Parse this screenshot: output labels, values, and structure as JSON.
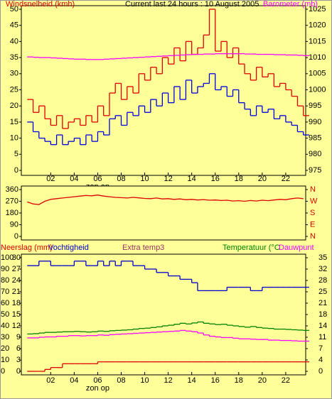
{
  "chart_data": [
    {
      "type": "line",
      "title": "Current last 24 hours : 10 August 2005",
      "ylabel": "Windsnelheid (kmh)",
      "y2label": "Barometer (mb)",
      "step": true,
      "x": [
        0,
        0.5,
        1,
        1.5,
        2,
        2.5,
        3,
        3.5,
        4,
        4.5,
        5,
        5.5,
        6,
        6.5,
        7,
        7.5,
        8,
        8.5,
        9,
        9.5,
        10,
        10.5,
        11,
        11.5,
        12,
        12.5,
        13,
        13.5,
        14,
        14.5,
        15,
        15.5,
        16,
        16.5,
        17,
        17.5,
        18,
        18.5,
        19,
        19.5,
        20,
        20.5,
        21,
        21.5,
        22,
        22.5,
        23,
        23.5
      ],
      "xlim": [
        -0.5,
        23.7
      ],
      "xticks": [
        {
          "value": 2,
          "label": "02"
        },
        {
          "value": 4,
          "label": "04"
        },
        {
          "value": 6,
          "label": "06"
        },
        {
          "value": 8,
          "label": "08"
        },
        10,
        12,
        14,
        16,
        18,
        20,
        22
      ],
      "annotation": {
        "x": 6,
        "text": "zon op"
      },
      "ylim": [
        0,
        50
      ],
      "yticks": [
        0,
        5,
        10,
        15,
        20,
        25,
        30,
        35,
        40,
        45,
        50
      ],
      "y2lim": [
        975,
        1025
      ],
      "y2ticks": [
        975,
        980,
        985,
        990,
        995,
        1000,
        1005,
        1010,
        1015,
        1020,
        1025
      ],
      "series": [
        {
          "color": "#e00000",
          "values": [
            22,
            18,
            20,
            16,
            14,
            17,
            13,
            15,
            16,
            14,
            17,
            15,
            20,
            17,
            24,
            27,
            22,
            26,
            24,
            30,
            28,
            32,
            30,
            35,
            33,
            38,
            34,
            40,
            36,
            38,
            42,
            50,
            37,
            40,
            35,
            38,
            33,
            30,
            28,
            32,
            29,
            30,
            26,
            27,
            25,
            23,
            20,
            17
          ]
        },
        {
          "color": "#0000dd",
          "values": [
            15,
            12,
            10,
            9,
            8,
            11,
            8,
            9,
            10,
            8,
            11,
            9,
            12,
            11,
            16,
            17,
            14,
            18,
            17,
            20,
            18,
            22,
            20,
            24,
            21,
            26,
            22,
            28,
            24,
            26,
            27,
            30,
            25,
            26,
            23,
            25,
            21,
            19,
            17,
            20,
            18,
            19,
            16,
            17,
            15,
            14,
            12,
            11
          ]
        },
        {
          "color": "#ff00ff",
          "axis": "y2",
          "values": [
            1010.2,
            1010.1,
            1010,
            1010,
            1009.9,
            1009.8,
            1009.7,
            1009.6,
            1009.5,
            1009.5,
            1009.4,
            1009.4,
            1009.4,
            1009.5,
            1009.6,
            1009.7,
            1009.8,
            1009.9,
            1010,
            1010.1,
            1010.2,
            1010.3,
            1010.4,
            1010.5,
            1010.6,
            1010.7,
            1010.8,
            1010.9,
            1011,
            1011,
            1011.1,
            1011.1,
            1011.2,
            1011.2,
            1011.2,
            1011.2,
            1011.2,
            1011.1,
            1011.1,
            1011,
            1011,
            1011,
            1010.9,
            1010.9,
            1010.8,
            1010.8,
            1010.7,
            1010.6
          ]
        }
      ]
    },
    {
      "type": "line",
      "x": [
        0,
        0.5,
        1,
        1.5,
        2,
        2.5,
        3,
        3.5,
        4,
        4.5,
        5,
        5.5,
        6,
        6.5,
        7,
        7.5,
        8,
        8.5,
        9,
        9.5,
        10,
        10.5,
        11,
        11.5,
        12,
        12.5,
        13,
        13.5,
        14,
        14.5,
        15,
        15.5,
        16,
        16.5,
        17,
        17.5,
        18,
        18.5,
        19,
        19.5,
        20,
        20.5,
        21,
        21.5,
        22,
        22.5,
        23,
        23.5
      ],
      "xlim": [
        -0.5,
        23.7
      ],
      "ylim": [
        0,
        360
      ],
      "yticks": [
        0,
        90,
        180,
        270,
        360
      ],
      "y2ticks": [
        {
          "value": 360,
          "label": "N"
        },
        {
          "value": 270,
          "label": "W"
        },
        {
          "value": 180,
          "label": "S"
        },
        {
          "value": 90,
          "label": "E"
        },
        {
          "value": 0,
          "label": "N"
        }
      ],
      "series": [
        {
          "color": "#dd0000",
          "values": [
            265,
            250,
            245,
            270,
            285,
            290,
            295,
            300,
            305,
            310,
            315,
            312,
            318,
            310,
            305,
            300,
            298,
            295,
            300,
            296,
            292,
            290,
            295,
            288,
            290,
            285,
            288,
            282,
            285,
            280,
            283,
            278,
            280,
            276,
            278,
            272,
            275,
            270,
            276,
            272,
            278,
            275,
            280,
            285,
            282,
            290,
            295,
            290
          ]
        }
      ]
    },
    {
      "type": "line",
      "note": "Extra temp3",
      "step": true,
      "x": [
        0,
        0.5,
        1,
        1.5,
        2,
        2.5,
        3,
        3.5,
        4,
        4.5,
        5,
        5.5,
        6,
        6.5,
        7,
        7.5,
        8,
        8.5,
        9,
        9.5,
        10,
        10.5,
        11,
        11.5,
        12,
        12.5,
        13,
        13.5,
        14,
        14.5,
        15,
        15.5,
        16,
        16.5,
        17,
        17.5,
        18,
        18.5,
        19,
        19.5,
        20,
        20.5,
        21,
        21.5,
        22,
        22.5,
        23,
        23.5
      ],
      "xlim": [
        -0.5,
        23.7
      ],
      "xticks": [
        {
          "value": 2,
          "label": "02"
        },
        {
          "value": 4,
          "label": "04"
        },
        {
          "value": 6,
          "label": "06"
        },
        {
          "value": 8,
          "label": "08"
        },
        10,
        12,
        14,
        16,
        18,
        20,
        22
      ],
      "annotation": {
        "x": 6,
        "text": "zon op"
      },
      "ylim": [
        0,
        100
      ],
      "yticks": [
        0,
        10,
        20,
        30,
        40,
        50,
        60,
        70,
        80,
        90,
        100
      ],
      "y3lim": [
        0,
        30
      ],
      "y3ticks": [
        0,
        3,
        6,
        9,
        12,
        15,
        18,
        21,
        24,
        27,
        30
      ],
      "y2lim": [
        0,
        35
      ],
      "y2ticks": [
        0,
        {
          "value": 3.5,
          "label": "4"
        },
        7,
        {
          "value": 10.5,
          "label": "11"
        },
        14,
        {
          "value": 17.5,
          "label": "18"
        },
        21,
        {
          "value": 24.5,
          "label": "25"
        },
        28,
        {
          "value": 31.5,
          "label": "32"
        },
        35
      ],
      "series": [
        {
          "name": "Neerslag (mm)",
          "color": "#dd0000",
          "axis": "y3",
          "values": [
            0,
            0,
            0,
            0.5,
            1,
            1,
            2,
            2,
            2,
            2,
            2,
            2,
            2.5,
            2.5,
            2.5,
            2.5,
            2.5,
            2.5,
            2.5,
            2.5,
            2.5,
            2.5,
            2.5,
            2.5,
            2.5,
            2.5,
            2.5,
            2.5,
            2.5,
            2.5,
            2.5,
            2.5,
            2.5,
            2.5,
            2.5,
            2.5,
            2.5,
            2.5,
            2.5,
            2.5,
            2.5,
            2.5,
            2.5,
            2.5,
            2.5,
            2.5,
            2.5,
            2.5
          ]
        },
        {
          "name": "Vochtigheid",
          "color": "#0000cc",
          "values": [
            93,
            93,
            97,
            97,
            93,
            93,
            93,
            93,
            97,
            97,
            93,
            93,
            97,
            93,
            97,
            93,
            97,
            97,
            93,
            93,
            90,
            90,
            87,
            87,
            84,
            84,
            81,
            81,
            78,
            71,
            71,
            71,
            71,
            71,
            74,
            74,
            74,
            74,
            71,
            71,
            74,
            74,
            74,
            74,
            74,
            74,
            74,
            74
          ]
        },
        {
          "name": "Temperatuur (°C",
          "color": "#008000",
          "axis": "y2",
          "values": [
            11.5,
            11.6,
            11.8,
            12,
            12,
            12.1,
            12.2,
            12.2,
            12.3,
            12.2,
            12.1,
            12.2,
            12.4,
            12.3,
            12.5,
            12.6,
            12.7,
            12.8,
            13,
            13.2,
            13.3,
            13.5,
            13.7,
            14,
            14.2,
            14.5,
            14.8,
            14.6,
            14.9,
            15.2,
            14.8,
            14.6,
            14.4,
            14.5,
            14.2,
            14,
            13.8,
            13.6,
            13.8,
            13.5,
            13.3,
            13.2,
            13,
            13,
            12.9,
            12.8,
            12.7,
            12.6
          ]
        },
        {
          "name": "Dauwpunt",
          "color": "#ff00ff",
          "axis": "y2",
          "values": [
            10.3,
            10.3,
            10.5,
            10.6,
            10.6,
            10.8,
            10.8,
            11,
            11,
            10.9,
            11,
            11,
            11.2,
            11.1,
            11.3,
            11.4,
            11.5,
            11.6,
            11.7,
            11.8,
            11.9,
            12,
            12.1,
            12.2,
            12.3,
            12.4,
            12.6,
            12.4,
            12.2,
            11.8,
            11.2,
            10.8,
            10.6,
            10.4,
            10.4,
            10.2,
            10,
            10,
            9.9,
            9.8,
            9.8,
            9.6,
            9.6,
            9.5,
            9.5,
            9.4,
            9.3,
            9.3
          ]
        }
      ]
    }
  ]
}
